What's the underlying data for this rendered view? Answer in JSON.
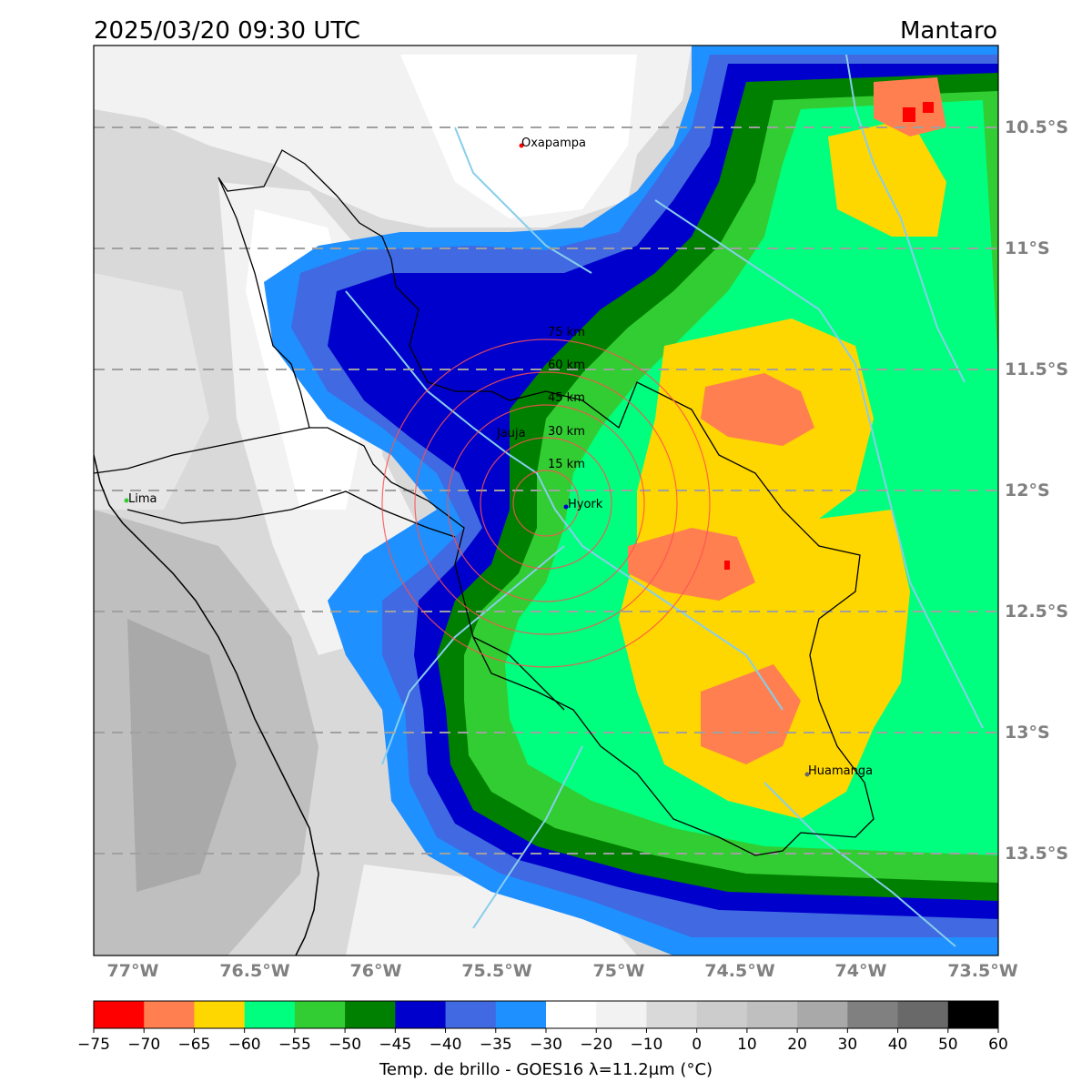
{
  "title_left": "2025/03/20 09:30 UTC",
  "title_right": "Mantaro",
  "lat_labels": [
    "10.5°S",
    "11°S",
    "11.5°S",
    "12°S",
    "12.5°S",
    "13°S",
    "13.5°S"
  ],
  "lon_labels": [
    "77°W",
    "76.5°W",
    "76°W",
    "75.5°W",
    "75°W",
    "74.5°W",
    "74°W",
    "73.5°W"
  ],
  "cities": [
    {
      "name": "Oxapampa"
    },
    {
      "name": "Lima"
    },
    {
      "name": "Hyork"
    },
    {
      "name": "Jauja"
    },
    {
      "name": "Huamanga"
    }
  ],
  "ring_labels": [
    "15 km",
    "30 km",
    "45 km",
    "60 km",
    "75 km"
  ],
  "colorbar": {
    "label": "Temp. de brillo - GOES16 λ=11.2μm (°C)",
    "ticks": [
      "−75",
      "−70",
      "−65",
      "−60",
      "−55",
      "−50",
      "−45",
      "−40",
      "−35",
      "−30",
      "−20",
      "−10",
      "0",
      "10",
      "20",
      "30",
      "40",
      "50",
      "60"
    ],
    "colors": [
      "#ff0000",
      "#ff7f50",
      "#ffd700",
      "#00ff7f",
      "#32cd32",
      "#008000",
      "#0000cd",
      "#4169e1",
      "#1e90ff",
      "#ffffff",
      "#f2f2f2",
      "#d9d9d9",
      "#cccccc",
      "#bfbfbf",
      "#a9a9a9",
      "#808080",
      "#696969",
      "#000000"
    ]
  }
}
